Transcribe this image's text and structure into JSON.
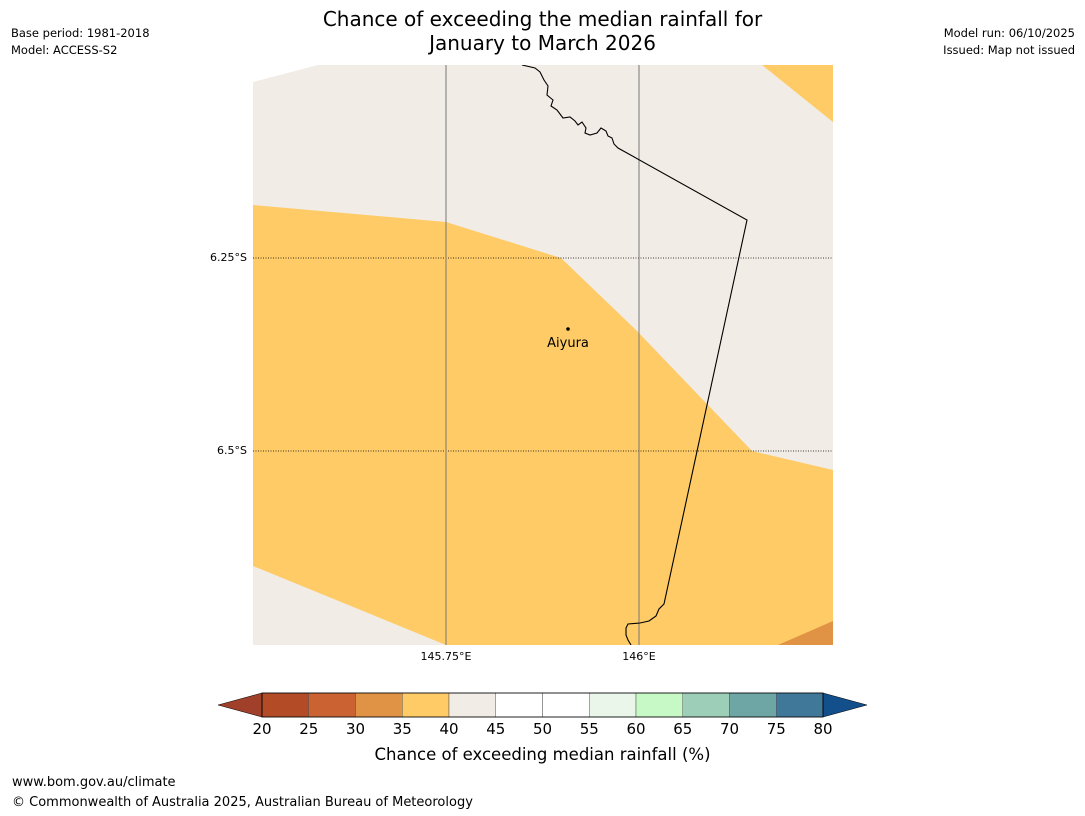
{
  "title_line1": "Chance of exceeding the median rainfall for",
  "title_line2": "January to March 2026",
  "meta_left": {
    "base_period": "Base period: 1981-2018",
    "model": "Model: ACCESS-S2"
  },
  "meta_right": {
    "model_run": "Model run: 06/10/2025",
    "issued": "Issued: Map not issued"
  },
  "map": {
    "lat_labels": [
      "6.25°S",
      "6.5°S"
    ],
    "lon_labels": [
      "145.75°E",
      "146°E"
    ],
    "city": {
      "name": "Aiyura",
      "lon": 145.904,
      "lat": -6.352
    },
    "colors": {
      "c35_40": "#fecb66",
      "c40_45": "#f1ece6",
      "c30_35": "#e09344"
    }
  },
  "colorbar": {
    "ticks": [
      "20",
      "25",
      "30",
      "35",
      "40",
      "45",
      "50",
      "55",
      "60",
      "65",
      "70",
      "75",
      "80"
    ],
    "colors": [
      "#a1402a",
      "#b34b27",
      "#cb6231",
      "#e09344",
      "#fecb66",
      "#f1ece6",
      "#ffffff",
      "#ffffff",
      "#eaf6ea",
      "#c6f9c6",
      "#9dcfb8",
      "#6ea6a6",
      "#3f7899",
      "#134f8b"
    ],
    "label": "Chance of exceeding median rainfall (%)"
  },
  "footer": {
    "url": "www.bom.gov.au/climate",
    "copyright": "© Commonwealth of Australia 2025, Australian Bureau of Meteorology"
  }
}
